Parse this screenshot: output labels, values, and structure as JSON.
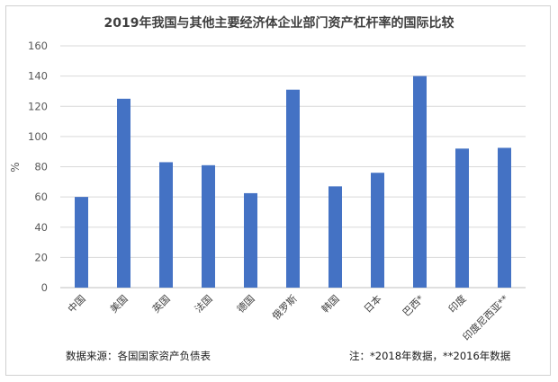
{
  "chart_data": {
    "type": "bar",
    "title": "2019年我国与其他主要经济体企业部门资产杠杆率的国际比较",
    "ylabel": "%",
    "xlabel": "",
    "ylim": [
      0,
      160
    ],
    "yticks": [
      0,
      20,
      40,
      60,
      80,
      100,
      120,
      140,
      160
    ],
    "grid": true,
    "categories": [
      "中国",
      "美国",
      "英国",
      "法国",
      "德国",
      "俄罗斯",
      "韩国",
      "日本",
      "巴西*",
      "印度",
      "印度尼西亚**"
    ],
    "values": [
      60,
      125,
      83,
      81,
      62.5,
      131,
      67,
      76,
      140,
      92,
      92.5
    ],
    "bar_color": "#4472C4"
  },
  "footer": {
    "source": "数据来源：各国国家资产负债表",
    "note": "注：*2018年数据，**2016年数据"
  }
}
